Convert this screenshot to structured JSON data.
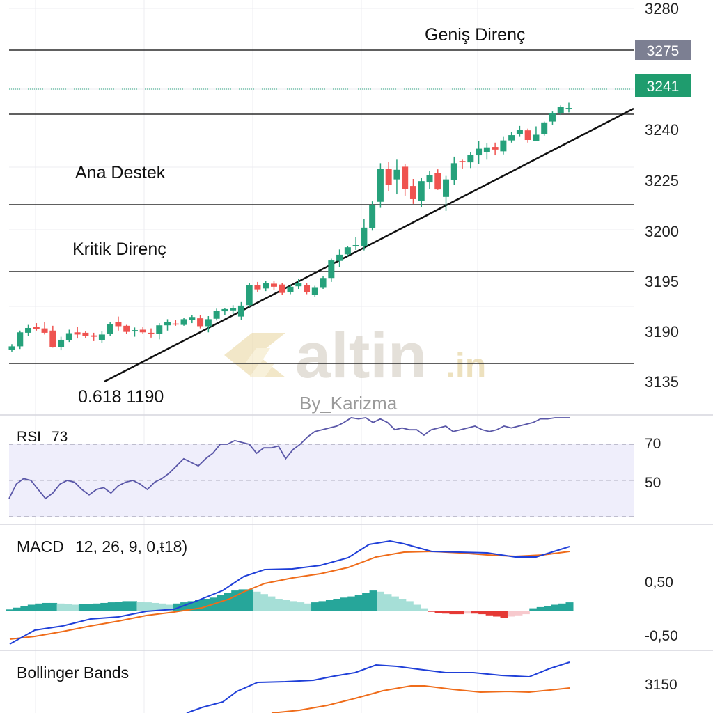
{
  "colors": {
    "up": "#26a17b",
    "down": "#ef5350",
    "grid": "#ececf2",
    "level_line": "#2b2b2b",
    "trendline": "#111111",
    "rsi_line": "#5a57a8",
    "rsi_band": "#efeefb",
    "macd_line": "#1f3fd8",
    "signal_line": "#ef6c1a",
    "hist_up_strong": "#26a69a",
    "hist_up_weak": "#a6dfd7",
    "hist_down_strong": "#e53935",
    "hist_down_weak": "#f7c9cd",
    "badge_gray": "#7c7f92",
    "badge_green": "#1f9c6e",
    "watermark": "#d9d2c3"
  },
  "watermark": {
    "brand": "altin",
    "suffix": ".in",
    "byline": "By_Karizma"
  },
  "main": {
    "price_axis_labels": [
      "3280",
      "3240",
      "3225",
      "3200",
      "3195",
      "3190",
      "3135"
    ],
    "levels": [
      {
        "label": "Geniş Direnç",
        "badge": "3275"
      },
      {
        "label": "",
        "badge": ""
      },
      {
        "label": "Ana Destek",
        "badge": ""
      },
      {
        "label": "Kritik Direnç",
        "badge": ""
      },
      {
        "label": "",
        "badge": ""
      }
    ],
    "last_price_badge": "3241",
    "trendline_label": "0.618 1190"
  },
  "rsi": {
    "title": "RSI",
    "value": "73",
    "axis_labels": [
      "70",
      "50"
    ],
    "series": [
      40,
      48,
      51,
      50,
      45,
      40,
      43,
      48,
      50,
      49,
      45,
      42,
      45,
      46,
      43,
      47,
      49,
      50,
      48,
      45,
      49,
      51,
      54,
      58,
      62,
      60,
      58,
      62,
      65,
      70,
      70,
      72,
      71,
      70,
      65,
      68,
      68,
      69,
      62,
      67,
      70,
      74,
      77,
      78,
      79,
      80,
      82,
      86,
      84,
      85,
      82,
      84,
      82,
      78,
      79,
      78,
      78,
      75,
      78,
      79,
      80,
      77,
      78,
      79,
      80,
      78,
      77,
      78,
      80,
      79,
      80,
      81,
      82,
      84,
      84,
      85,
      86,
      87
    ]
  },
  "macd": {
    "title": "MACD",
    "params": "12, 26, 9, 0,ŧ18)",
    "axis_labels": [
      "0,50",
      "-0,50"
    ],
    "histogram": [
      0.02,
      0.05,
      0.08,
      0.1,
      0.12,
      0.13,
      0.13,
      0.12,
      0.11,
      0.1,
      0.11,
      0.11,
      0.12,
      0.13,
      0.14,
      0.15,
      0.16,
      0.16,
      0.15,
      0.14,
      0.13,
      0.12,
      0.1,
      0.12,
      0.14,
      0.16,
      0.18,
      0.2,
      0.22,
      0.26,
      0.3,
      0.34,
      0.36,
      0.36,
      0.32,
      0.28,
      0.24,
      0.2,
      0.18,
      0.16,
      0.14,
      0.12,
      0.14,
      0.16,
      0.18,
      0.2,
      0.22,
      0.24,
      0.26,
      0.3,
      0.34,
      0.32,
      0.28,
      0.24,
      0.2,
      0.16,
      0.1,
      0.04,
      -0.02,
      -0.04,
      -0.05,
      -0.06,
      -0.06,
      -0.05,
      -0.05,
      -0.06,
      -0.08,
      -0.1,
      -0.12,
      -0.1,
      -0.08,
      -0.06,
      0.04,
      0.06,
      0.08,
      0.1,
      0.12,
      0.14
    ]
  },
  "bollinger": {
    "title": "Bollinger Bands",
    "axis_labels": [
      "3150"
    ]
  },
  "chart_data": {
    "type": "candlestick",
    "price_levels": [
      3275,
      3241
    ],
    "ohlc": [
      [
        3186.2,
        3187.5,
        3185.8,
        3187.0
      ],
      [
        3187.0,
        3190.6,
        3186.4,
        3190.2
      ],
      [
        3190.1,
        3191.9,
        3189.4,
        3191.2
      ],
      [
        3191.4,
        3192.3,
        3190.6,
        3190.9
      ],
      [
        3191.1,
        3192.6,
        3189.7,
        3190.1
      ],
      [
        3190.6,
        3191.7,
        3186.7,
        3186.9
      ],
      [
        3186.9,
        3189.2,
        3186.1,
        3188.5
      ],
      [
        3188.4,
        3190.8,
        3188.0,
        3190.0
      ],
      [
        3190.2,
        3191.4,
        3188.8,
        3189.7
      ],
      [
        3190.1,
        3190.5,
        3188.9,
        3189.3
      ],
      [
        3189.5,
        3190.1,
        3188.2,
        3189.2
      ],
      [
        3188.4,
        3190.4,
        3187.8,
        3189.7
      ],
      [
        3189.9,
        3192.6,
        3189.3,
        3192.0
      ],
      [
        3192.6,
        3193.8,
        3190.6,
        3191.6
      ],
      [
        3191.7,
        3191.9,
        3189.8,
        3190.3
      ],
      [
        3190.4,
        3191.3,
        3189.2,
        3190.7
      ],
      [
        3190.8,
        3191.4,
        3189.9,
        3190.2
      ],
      [
        3190.1,
        3191.1,
        3189.0,
        3189.8
      ],
      [
        3189.9,
        3192.3,
        3188.6,
        3191.8
      ],
      [
        3191.8,
        3193.2,
        3190.6,
        3192.5
      ],
      [
        3192.2,
        3193.0,
        3191.7,
        3192.0
      ],
      [
        3191.9,
        3193.5,
        3191.7,
        3193.2
      ],
      [
        3193.0,
        3194.2,
        3192.3,
        3193.7
      ],
      [
        3193.4,
        3194.1,
        3191.1,
        3191.6
      ],
      [
        3191.6,
        3193.9,
        3190.2,
        3193.2
      ],
      [
        3193.3,
        3195.6,
        3192.9,
        3195.1
      ],
      [
        3195.0,
        3195.8,
        3194.2,
        3195.5
      ],
      [
        3195.2,
        3196.4,
        3194.4,
        3195.8
      ],
      [
        3193.8,
        3197.1,
        3193.0,
        3196.3
      ],
      [
        3196.4,
        3201.4,
        3196.0,
        3200.9
      ],
      [
        3201.0,
        3201.7,
        3199.3,
        3200.0
      ],
      [
        3200.2,
        3201.9,
        3199.6,
        3201.4
      ],
      [
        3201.3,
        3201.9,
        3199.9,
        3200.6
      ],
      [
        3201.1,
        3201.4,
        3198.8,
        3199.2
      ],
      [
        3199.4,
        3201.1,
        3198.9,
        3200.6
      ],
      [
        3200.7,
        3202.4,
        3200.1,
        3201.4
      ],
      [
        3201.0,
        3201.4,
        3198.9,
        3199.4
      ],
      [
        3198.7,
        3200.8,
        3198.3,
        3200.5
      ],
      [
        3200.5,
        3203.1,
        3200.1,
        3202.6
      ],
      [
        3202.6,
        3207.0,
        3201.7,
        3206.6
      ],
      [
        3206.5,
        3209.1,
        3205.1,
        3207.9
      ],
      [
        3208.0,
        3209.9,
        3207.5,
        3209.6
      ],
      [
        3209.8,
        3211.9,
        3209.0,
        3210.1
      ],
      [
        3209.8,
        3216.0,
        3208.9,
        3214.1
      ],
      [
        3214.0,
        3220.1,
        3213.4,
        3219.2
      ],
      [
        3220.0,
        3228.8,
        3218.6,
        3227.5
      ],
      [
        3227.5,
        3229.1,
        3222.5,
        3223.9
      ],
      [
        3225.1,
        3229.6,
        3221.7,
        3227.3
      ],
      [
        3228.0,
        3228.6,
        3221.4,
        3222.9
      ],
      [
        3223.6,
        3225.2,
        3219.5,
        3220.6
      ],
      [
        3220.2,
        3225.5,
        3218.8,
        3224.7
      ],
      [
        3224.4,
        3227.1,
        3222.9,
        3226.1
      ],
      [
        3226.6,
        3227.4,
        3222.7,
        3222.8
      ],
      [
        3221.1,
        3225.9,
        3217.9,
        3225.1
      ],
      [
        3225.0,
        3230.3,
        3223.9,
        3228.8
      ],
      [
        3229.3,
        3229.6,
        3227.6,
        3229.1
      ],
      [
        3229.0,
        3231.4,
        3227.7,
        3230.7
      ],
      [
        3230.6,
        3233.9,
        3228.6,
        3232.1
      ],
      [
        3231.4,
        3233.3,
        3229.6,
        3232.4
      ],
      [
        3232.5,
        3233.5,
        3230.6,
        3231.9
      ],
      [
        3231.5,
        3234.8,
        3230.8,
        3234.0
      ],
      [
        3234.0,
        3235.9,
        3233.5,
        3235.2
      ],
      [
        3235.4,
        3237.3,
        3234.8,
        3236.4
      ],
      [
        3236.3,
        3236.7,
        3233.5,
        3234.1
      ],
      [
        3233.9,
        3237.2,
        3233.8,
        3235.3
      ],
      [
        3235.4,
        3238.3,
        3235.1,
        3238.1
      ],
      [
        3238.3,
        3240.6,
        3237.6,
        3240.2
      ],
      [
        3240.3,
        3242.0,
        3239.8,
        3241.6
      ],
      [
        3241.4,
        3242.6,
        3240.4,
        3241.4
      ]
    ]
  }
}
